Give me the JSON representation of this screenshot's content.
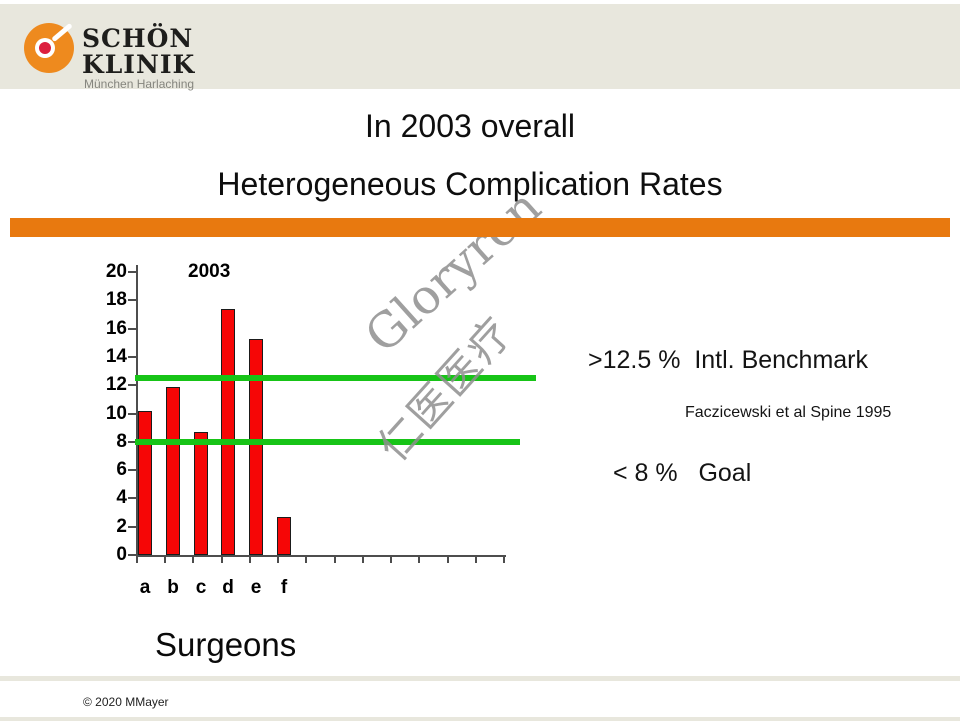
{
  "slide": {
    "title_line1": "In 2003 overall",
    "title_line2": "Heterogeneous Complication Rates",
    "copyright": "© 2020 MMayer"
  },
  "logo": {
    "name_line1": "SCHÖN",
    "name_line2": "KLINIK",
    "subtitle": "München Harlaching"
  },
  "annotations": {
    "benchmark": ">12.5 %  Intl. Benchmark",
    "reference": "Faczicewski et al Spine 1995",
    "goal": "< 8 %   Goal"
  },
  "watermark": {
    "line1": "Gloryren",
    "line2": "仁医医疗"
  },
  "colors": {
    "accent_orange": "#E8790F",
    "logo_orange": "#EE8A1E",
    "logo_red": "#DC1F3F",
    "bar_red": "#F60606",
    "line_green": "#17C417",
    "band_beige": "#E8E7DD",
    "watermark_gray": "#8F8F8F"
  },
  "chart_data": {
    "type": "bar",
    "title": "2003",
    "categories": [
      "a",
      "b",
      "c",
      "d",
      "e",
      "f"
    ],
    "values": [
      10.2,
      11.9,
      8.7,
      17.4,
      15.3,
      2.7
    ],
    "xlabel": "Surgeons",
    "ylabel": "",
    "ylim": [
      0,
      20
    ],
    "ytick_step": 2,
    "x_slot_count": 13,
    "grid": false,
    "legend": false,
    "bar_color": "#F60606",
    "reference_lines": [
      {
        "value": 12.5,
        "label": "Intl. Benchmark",
        "color": "#17C417"
      },
      {
        "value": 8,
        "label": "Goal",
        "color": "#17C417"
      }
    ]
  }
}
